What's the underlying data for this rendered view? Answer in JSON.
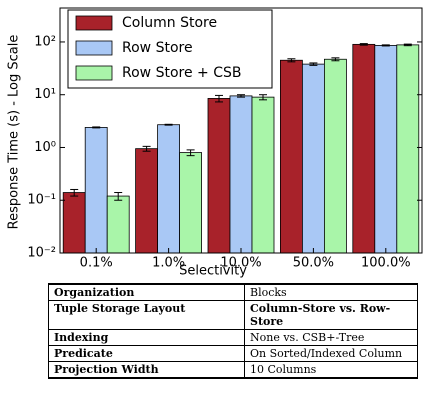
{
  "chart_data": {
    "type": "bar",
    "categories": [
      "0.1%",
      "1.0%",
      "10.0%",
      "50.0%",
      "100.0%"
    ],
    "series": [
      {
        "name": "Column Store",
        "color": "#a8222a",
        "values": [
          0.14,
          0.95,
          8.5,
          45,
          90
        ],
        "errors": [
          0.02,
          0.1,
          1.2,
          3,
          3
        ]
      },
      {
        "name": "Row Store",
        "color": "#a9c8f5",
        "values": [
          2.4,
          2.7,
          9.5,
          38,
          86
        ],
        "errors": [
          0.05,
          0.05,
          0.5,
          2,
          2
        ]
      },
      {
        "name": "Row Store + CSB",
        "color": "#a9f5a9",
        "values": [
          0.12,
          0.8,
          9,
          47,
          88
        ],
        "errors": [
          0.02,
          0.1,
          1,
          3,
          3
        ]
      }
    ],
    "xlabel": "Selectivity",
    "ylabel": "Response Time (s) - Log Scale",
    "yscale": "log",
    "ylim": [
      0.01,
      440
    ],
    "yticks": [
      {
        "value": 0.01,
        "label": "10⁻²"
      },
      {
        "value": 0.1,
        "label": "10⁻¹"
      },
      {
        "value": 1,
        "label": "10⁰"
      },
      {
        "value": 10,
        "label": "10¹"
      },
      {
        "value": 100,
        "label": "10²"
      }
    ],
    "legend": "upper left"
  },
  "table": {
    "rows": [
      [
        "Organization",
        "Blocks"
      ],
      [
        "Tuple Storage Layout",
        "Column-Store vs. Row-Store"
      ],
      [
        "Indexing",
        "None vs. CSB+-Tree"
      ],
      [
        "Predicate",
        "On Sorted/Indexed Column"
      ],
      [
        "Projection Width",
        "10 Columns"
      ]
    ]
  }
}
